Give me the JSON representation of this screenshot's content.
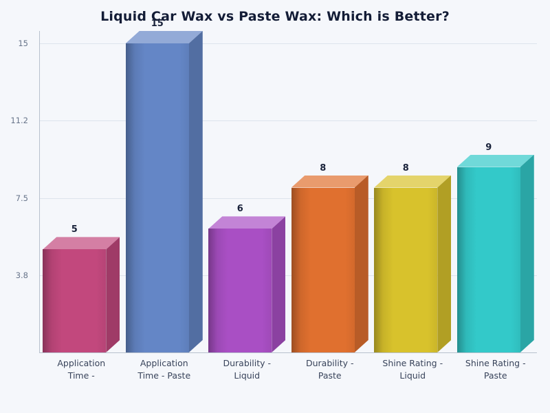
{
  "page": {
    "background_color": "#f5f7fb",
    "grid_color": "#dde3ec",
    "axis_color": "#b7c0cd"
  },
  "chart_data": {
    "type": "bar",
    "style": "3d",
    "title": "Liquid Car Wax vs Paste Wax: Which is Better?",
    "xlabel": "",
    "ylabel": "",
    "grid": true,
    "legend": "none",
    "ylim": [
      0,
      15.8
    ],
    "categories": [
      "Application Time -",
      "Application Time - Paste",
      "Durability - Liquid",
      "Durability - Paste",
      "Shine Rating - Liquid",
      "Shine Rating - Paste"
    ],
    "values": [
      5,
      15,
      6,
      8,
      8,
      9
    ],
    "bar_colors": [
      "#c2487d",
      "#6486c6",
      "#a94fc4",
      "#e0702f",
      "#d8c22c",
      "#33c9c9"
    ],
    "y_ticks": [
      {
        "value": 3.75,
        "label": "3.8"
      },
      {
        "value": 7.5,
        "label": "7.5"
      },
      {
        "value": 11.25,
        "label": "11.2"
      },
      {
        "value": 15,
        "label": "15"
      }
    ]
  }
}
